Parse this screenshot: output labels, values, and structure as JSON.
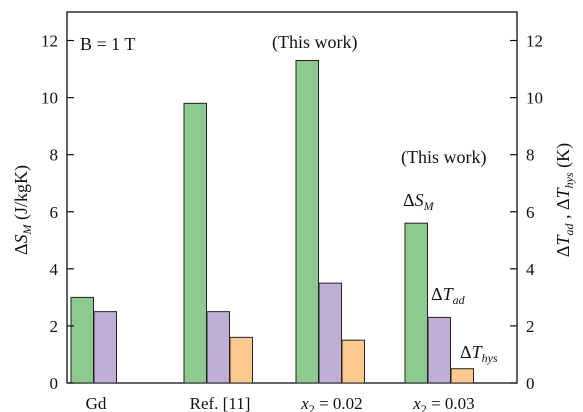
{
  "chart_data": {
    "type": "bar",
    "categories": [
      "Gd",
      "Ref. [11]",
      "x2 = 0.02",
      "x2 = 0.03"
    ],
    "category_labels": [
      {
        "main": "Gd"
      },
      {
        "main": "Ref. [11]"
      },
      {
        "var": "x",
        "sub": "2",
        "rest": " = 0.02"
      },
      {
        "var": "x",
        "sub": "2",
        "rest": " = 0.03"
      }
    ],
    "series": [
      {
        "name": "ΔS_M",
        "axis": "left",
        "color": "#8ec98f",
        "values": [
          3.0,
          9.8,
          11.3,
          5.6
        ]
      },
      {
        "name": "ΔT_ad",
        "axis": "right",
        "color": "#bfaed6",
        "values": [
          2.5,
          2.5,
          3.5,
          2.3
        ]
      },
      {
        "name": "ΔT_hys",
        "axis": "right",
        "color": "#fec98f",
        "values": [
          null,
          1.6,
          1.5,
          0.5
        ]
      }
    ],
    "ylim_left": [
      0,
      13
    ],
    "ylim_right": [
      0,
      13
    ],
    "yticks_left": [
      0,
      2,
      4,
      6,
      8,
      10,
      12
    ],
    "yticks_right": [
      0,
      2,
      4,
      6,
      8,
      10,
      12
    ],
    "ylabel_left": {
      "prefix": "Δ",
      "var": "S",
      "sub": "M",
      "unit": " (J/kgK)"
    },
    "ylabel_right": {
      "p1": "Δ",
      "v1": "T",
      "s1": "ad",
      "sep": " , Δ",
      "v2": "T",
      "s2": "hys",
      "unit": " (K)"
    },
    "annotations": {
      "field": "B = 1 T",
      "this_work_1": "(This work)",
      "this_work_2": "(This work)"
    },
    "series_labels": {
      "dS": {
        "d": "Δ",
        "v": "S",
        "s": "M"
      },
      "dTad": {
        "d": "Δ",
        "v": "T",
        "s": "ad"
      },
      "dThys": {
        "d": "Δ",
        "v": "T",
        "s": "hys"
      }
    },
    "grid": false
  }
}
